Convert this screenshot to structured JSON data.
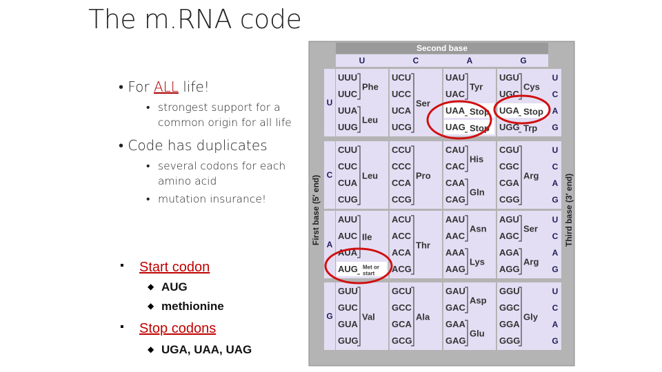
{
  "title": "The m.RNA code",
  "bullets": [
    {
      "before": "For ",
      "emph": "ALL",
      "after": " life!",
      "subs": [
        "strongest support for a common origin for all life"
      ]
    },
    {
      "text": "Code has duplicates",
      "subs": [
        "several codons for each amino acid",
        "mutation insurance!"
      ]
    }
  ],
  "points": [
    {
      "text": "Start codon",
      "subs": [
        "AUG",
        "methionine"
      ]
    },
    {
      "text": "Stop codons",
      "subs": [
        "UGA, UAA, UAG"
      ]
    }
  ],
  "table": {
    "title": "Second base",
    "second_bases": [
      "U",
      "C",
      "A",
      "G"
    ],
    "first_label": "First base (5′ end)",
    "third_label": "Third base (3′ end)",
    "blocks": [
      {
        "first": "U",
        "thirds": [
          "U",
          "C",
          "A",
          "G"
        ],
        "codons": [
          [
            "UUU",
            "UCU",
            "UAU",
            "UGU"
          ],
          [
            "UUC",
            "UCC",
            "UAC",
            "UGC"
          ],
          [
            "UUA",
            "UCA",
            "UAA",
            "UGA"
          ],
          [
            "UUG",
            "UCG",
            "UAG",
            "UGG"
          ]
        ],
        "amino": [
          [
            "Phe",
            "Leu"
          ],
          [
            "Ser"
          ],
          [
            "Tyr",
            "Stop",
            "Stop"
          ],
          [
            "Cys",
            "Stop",
            "Trp"
          ]
        ]
      },
      {
        "first": "C",
        "thirds": [
          "U",
          "C",
          "A",
          "G"
        ],
        "codons": [
          [
            "CUU",
            "CCU",
            "CAU",
            "CGU"
          ],
          [
            "CUC",
            "CCC",
            "CAC",
            "CGC"
          ],
          [
            "CUA",
            "CCA",
            "CAA",
            "CGA"
          ],
          [
            "CUG",
            "CCG",
            "CAG",
            "CGG"
          ]
        ],
        "amino": [
          [
            "Leu"
          ],
          [
            "Pro"
          ],
          [
            "His",
            "Gln"
          ],
          [
            "Arg"
          ]
        ]
      },
      {
        "first": "A",
        "thirds": [
          "U",
          "C",
          "A",
          "G"
        ],
        "codons": [
          [
            "AUU",
            "ACU",
            "AAU",
            "AGU"
          ],
          [
            "AUC",
            "ACC",
            "AAC",
            "AGC"
          ],
          [
            "AUA",
            "ACA",
            "AAA",
            "AGA"
          ],
          [
            "AUG",
            "ACG",
            "AAG",
            "AGG"
          ]
        ],
        "amino": [
          [
            "Ile",
            [
              "Met or",
              "start"
            ]
          ],
          [
            "Thr"
          ],
          [
            "Asn",
            "Lys"
          ],
          [
            "Ser",
            "Arg"
          ]
        ]
      },
      {
        "first": "G",
        "thirds": [
          "U",
          "C",
          "A",
          "G"
        ],
        "codons": [
          [
            "GUU",
            "GCU",
            "GAU",
            "GGU"
          ],
          [
            "GUC",
            "GCC",
            "GAC",
            "GGC"
          ],
          [
            "GUA",
            "GCA",
            "GAA",
            "GGA"
          ],
          [
            "GUG",
            "GCG",
            "GAG",
            "GGG"
          ]
        ],
        "amino": [
          [
            "Val"
          ],
          [
            "Ala"
          ],
          [
            "Asp",
            "Glu"
          ],
          [
            "Gly"
          ]
        ]
      }
    ]
  }
}
